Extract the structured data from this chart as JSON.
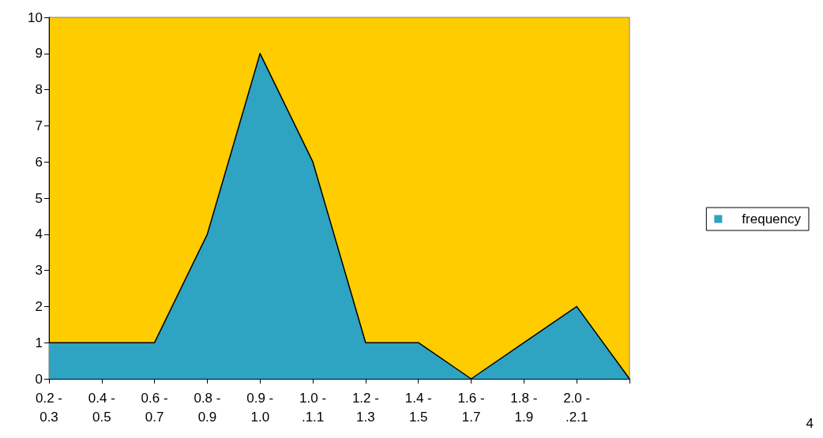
{
  "chart_data": {
    "type": "area",
    "categories": [
      "0.2 - 0.3",
      "0.4 - 0.5",
      "0.6 - 0.7",
      "0.8 - 0.9",
      "0.9 - 1.0",
      "1.0 - .1.1",
      "1.2 - 1.3",
      "1.4 - 1.5",
      "1.6 - 1.7",
      "1.8 - 1.9",
      "2.0 - .2.1",
      null
    ],
    "series": [
      {
        "name": "frequency",
        "color": "#2ea3c2",
        "values": [
          1,
          1,
          1,
          4,
          9,
          6,
          1,
          1,
          0,
          1,
          2,
          0
        ]
      }
    ],
    "ylim": [
      0,
      10
    ],
    "yticks": [
      0,
      1,
      2,
      3,
      4,
      5,
      6,
      7,
      8,
      9,
      10
    ],
    "grid": false,
    "legend": "right",
    "annotations": [
      "4"
    ]
  }
}
